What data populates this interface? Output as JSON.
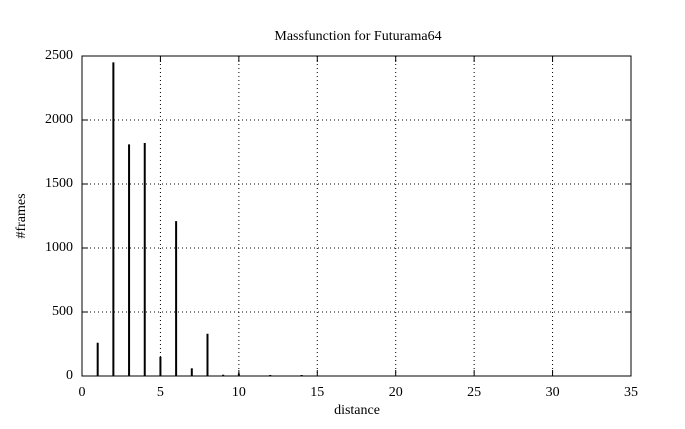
{
  "chart_data": {
    "type": "impulse",
    "title": "Massfunction for Futurama64",
    "xlabel": "distance",
    "ylabel": "#frames",
    "x": [
      1,
      2,
      3,
      4,
      5,
      6,
      7,
      8,
      9,
      10,
      12,
      14
    ],
    "values": [
      260,
      2450,
      1810,
      1820,
      150,
      1210,
      60,
      330,
      10,
      20,
      8,
      8
    ],
    "color": "#000000",
    "xlim": [
      0,
      35
    ],
    "xticks": [
      0,
      5,
      10,
      15,
      20,
      25,
      30,
      35
    ],
    "ylim": [
      0,
      2500
    ],
    "yticks": [
      0,
      500,
      1000,
      1500,
      2000,
      2500
    ],
    "grid": true
  }
}
